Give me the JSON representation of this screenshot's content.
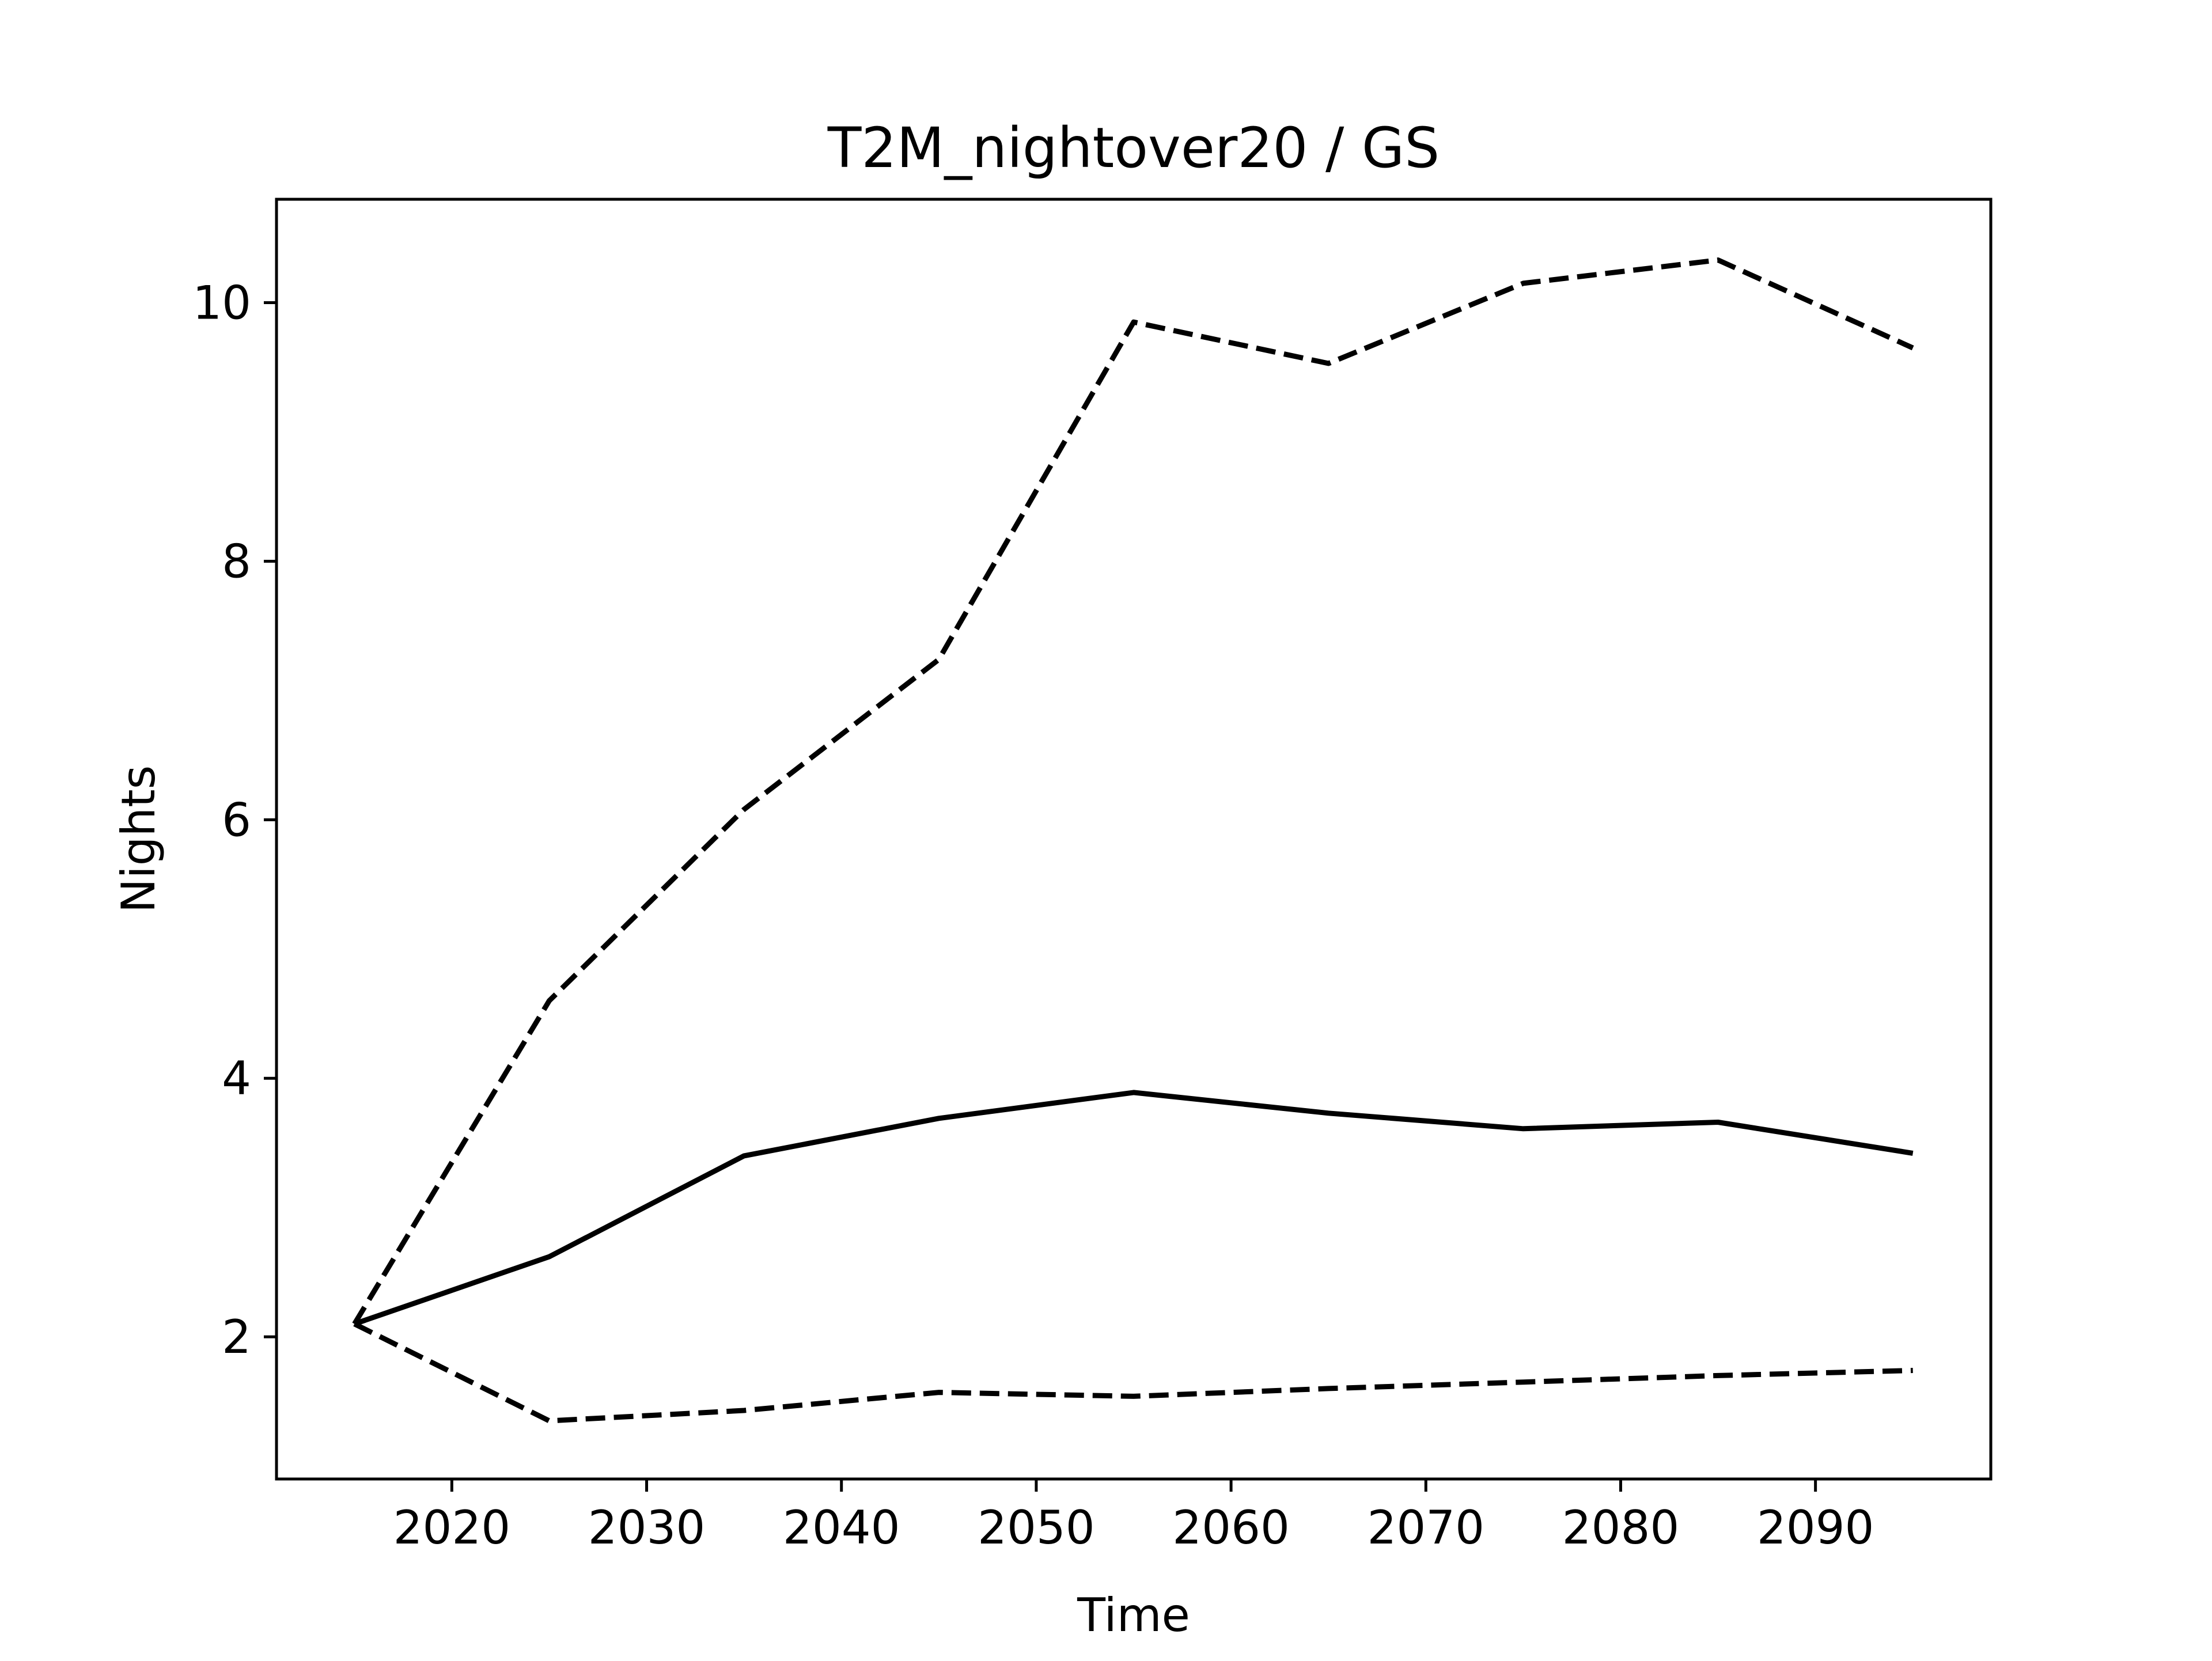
{
  "chart_data": {
    "type": "line",
    "title": "T2M_nightover20 / GS",
    "xlabel": "Time",
    "ylabel": "Nights",
    "xlim": [
      2011,
      2099
    ],
    "ylim": [
      0.9,
      10.8
    ],
    "grid": false,
    "x": [
      2015,
      2025,
      2035,
      2045,
      2055,
      2065,
      2075,
      2085,
      2095
    ],
    "x_ticks": [
      2020,
      2030,
      2040,
      2050,
      2060,
      2070,
      2080,
      2090
    ],
    "y_ticks": [
      2,
      4,
      6,
      8,
      10
    ],
    "series": [
      {
        "values": [
          2.1,
          4.6,
          6.08,
          7.24,
          9.85,
          9.53,
          10.15,
          10.33,
          9.65
        ],
        "style": "dashed",
        "color": "#000000"
      },
      {
        "values": [
          2.1,
          2.62,
          3.4,
          3.69,
          3.89,
          3.73,
          3.61,
          3.66,
          3.42
        ],
        "style": "solid",
        "color": "#000000"
      },
      {
        "values": [
          2.1,
          1.35,
          1.43,
          1.57,
          1.54,
          1.6,
          1.65,
          1.7,
          1.74
        ],
        "style": "dashed",
        "color": "#000000"
      }
    ]
  }
}
